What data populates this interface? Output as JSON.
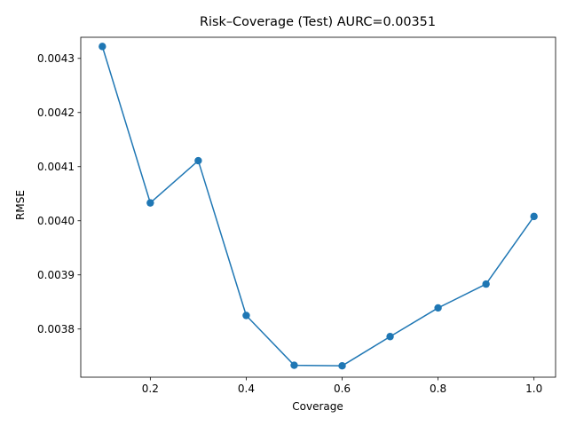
{
  "chart_data": {
    "type": "line",
    "title": "Risk–Coverage (Test)  AURC=0.00351",
    "xlabel": "Coverage",
    "ylabel": "RMSE",
    "xlim": [
      0.055,
      1.045
    ],
    "ylim": [
      0.003711,
      0.004339
    ],
    "xticks": [
      0.2,
      0.4,
      0.6,
      0.8,
      1.0
    ],
    "xtick_labels": [
      "0.2",
      "0.4",
      "0.6",
      "0.8",
      "1.0"
    ],
    "yticks": [
      0.0038,
      0.0039,
      0.004,
      0.0041,
      0.0042,
      0.0043
    ],
    "ytick_labels": [
      "0.0038",
      "0.0039",
      "0.0040",
      "0.0041",
      "0.0042",
      "0.0043"
    ],
    "grid": false,
    "series": [
      {
        "color": "#1f77b4",
        "marker": "circle",
        "x": [
          0.1,
          0.2,
          0.3,
          0.4,
          0.5,
          0.6,
          0.7,
          0.8,
          0.9,
          1.0
        ],
        "y": [
          0.004322,
          0.004033,
          0.004111,
          0.003825,
          0.003733,
          0.003732,
          0.003786,
          0.003839,
          0.003883,
          0.004008
        ]
      }
    ]
  }
}
